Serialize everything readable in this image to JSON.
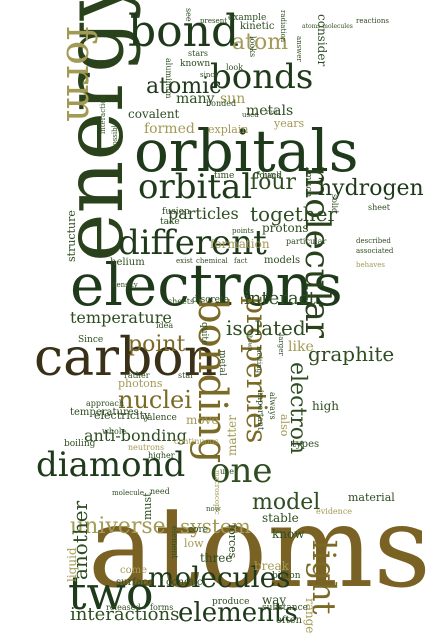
{
  "palette": {
    "dark_green": "#1f3a1a",
    "forest": "#2f4d22",
    "olive": "#7a6a26",
    "khaki": "#a39a55",
    "brown": "#4a3a1a",
    "light": "#9b9a6a"
  },
  "words": [
    {
      "text": "atoms",
      "color": "#7a6224"
    },
    {
      "text": "energy",
      "color": "#2a421c"
    },
    {
      "text": "orbitals",
      "color": "#1f3a1a"
    },
    {
      "text": "electrons",
      "color": "#1f3a1a"
    },
    {
      "text": "carbon",
      "color": "#3a3018"
    },
    {
      "text": "bond",
      "color": "#1f3a1a"
    },
    {
      "text": "bonds",
      "color": "#1f3a1a"
    },
    {
      "text": "form",
      "color": "#a39a55"
    },
    {
      "text": "atom",
      "color": "#a39a55"
    },
    {
      "text": "orbital",
      "color": "#1f3a1a"
    },
    {
      "text": "different",
      "color": "#1f3a1a"
    },
    {
      "text": "molecular",
      "color": "#2a421c"
    },
    {
      "text": "hydrogen",
      "color": "#1f3a1a"
    },
    {
      "text": "bonding",
      "color": "#7a6a26"
    },
    {
      "text": "properties",
      "color": "#7a6a26"
    },
    {
      "text": "one",
      "color": "#2f4d22"
    },
    {
      "text": "diamond",
      "color": "#1f3a1a"
    },
    {
      "text": "two",
      "color": "#1f3a1a"
    },
    {
      "text": "molecules",
      "color": "#1f3a1a"
    },
    {
      "text": "elements",
      "color": "#1f3a1a"
    },
    {
      "text": "light",
      "color": "#7a6a26"
    },
    {
      "text": "graphite",
      "color": "#2f4d22"
    },
    {
      "text": "nuclei",
      "color": "#7a6a26"
    },
    {
      "text": "point",
      "color": "#7a6a26"
    },
    {
      "text": "temperature",
      "color": "#2f4d22"
    },
    {
      "text": "atomic",
      "color": "#1f3a1a"
    },
    {
      "text": "four",
      "color": "#2f4d22"
    },
    {
      "text": "together",
      "color": "#2f4d22"
    },
    {
      "text": "particles",
      "color": "#2f4d22"
    },
    {
      "text": "universe",
      "color": "#a39a55"
    },
    {
      "text": "system",
      "color": "#a39a55"
    },
    {
      "text": "model",
      "color": "#2f4d22"
    },
    {
      "text": "electron",
      "color": "#2f4d22"
    },
    {
      "text": "isolated",
      "color": "#2f4d22"
    },
    {
      "text": "interact",
      "color": "#2f4d22"
    },
    {
      "text": "anti-bonding",
      "color": "#2f4d22"
    },
    {
      "text": "interactions",
      "color": "#2f4d22"
    },
    {
      "text": "another",
      "color": "#2f4d22"
    },
    {
      "text": "metals",
      "color": "#2f4d22"
    },
    {
      "text": "sun",
      "color": "#a39a55"
    },
    {
      "text": "formed",
      "color": "#a39a55"
    },
    {
      "text": "covalent",
      "color": "#2f4d22"
    },
    {
      "text": "many",
      "color": "#2f4d22"
    },
    {
      "text": "consider",
      "color": "#2f4d22"
    },
    {
      "text": "kinetic",
      "color": "#2f4d22"
    },
    {
      "text": "structure",
      "color": "#2f4d22"
    },
    {
      "text": "helium",
      "color": "#2f4d22"
    },
    {
      "text": "protons",
      "color": "#2f4d22"
    },
    {
      "text": "formation",
      "color": "#a39a55"
    },
    {
      "text": "photons",
      "color": "#a39a55"
    },
    {
      "text": "move",
      "color": "#a39a55"
    },
    {
      "text": "stable",
      "color": "#2f4d22"
    },
    {
      "text": "like",
      "color": "#a39a55"
    },
    {
      "text": "matter",
      "color": "#a39a55"
    },
    {
      "text": "high",
      "color": "#2f4d22"
    },
    {
      "text": "electricity",
      "color": "#2f4d22"
    },
    {
      "text": "temperatures",
      "color": "#2f4d22"
    },
    {
      "text": "break",
      "color": "#a39a55"
    },
    {
      "text": "way",
      "color": "#2f4d22"
    },
    {
      "text": "range",
      "color": "#a39a55"
    },
    {
      "text": "know",
      "color": "#2f4d22"
    },
    {
      "text": "three",
      "color": "#2f4d22"
    },
    {
      "text": "liquid",
      "color": "#a39a55"
    },
    {
      "text": "forces",
      "color": "#2f4d22"
    },
    {
      "text": "must",
      "color": "#2f4d22"
    },
    {
      "text": "Since",
      "color": "#2f4d22"
    },
    {
      "text": "fusion",
      "color": "#2f4d22"
    },
    {
      "text": "example",
      "color": "#2f4d22"
    },
    {
      "text": "time",
      "color": "#2f4d22"
    },
    {
      "text": "found",
      "color": "#2f4d22"
    },
    {
      "text": "explain",
      "color": "#a39a55"
    },
    {
      "text": "years",
      "color": "#a39a55"
    },
    {
      "text": "models",
      "color": "#2f4d22"
    },
    {
      "text": "take",
      "color": "#2f4d22"
    },
    {
      "text": "sheets",
      "color": "#2f4d22"
    },
    {
      "text": "discrete",
      "color": "#2f4d22"
    },
    {
      "text": "rather",
      "color": "#2f4d22"
    },
    {
      "text": "star",
      "color": "#2f4d22"
    },
    {
      "text": "approach",
      "color": "#2f4d22"
    },
    {
      "text": "valence",
      "color": "#2f4d22"
    },
    {
      "text": "whole",
      "color": "#2f4d22"
    },
    {
      "text": "boiling",
      "color": "#2f4d22"
    },
    {
      "text": "neutrons",
      "color": "#a39a55"
    },
    {
      "text": "continuous",
      "color": "#a39a55"
    },
    {
      "text": "higher",
      "color": "#2f4d22"
    },
    {
      "text": "molecule",
      "color": "#2f4d22"
    },
    {
      "text": "need",
      "color": "#2f4d22"
    },
    {
      "text": "now",
      "color": "#2f4d22"
    },
    {
      "text": "use",
      "color": "#2f4d22"
    },
    {
      "text": "core",
      "color": "#2f4d22"
    },
    {
      "text": "low",
      "color": "#a39a55"
    },
    {
      "text": "element",
      "color": "#2f4d22"
    },
    {
      "text": "come",
      "color": "#a39a55"
    },
    {
      "text": "surface",
      "color": "#2f4d22"
    },
    {
      "text": "conduct",
      "color": "#2f4d22"
    },
    {
      "text": "billion",
      "color": "#2f4d22"
    },
    {
      "text": "produce",
      "color": "#2f4d22"
    },
    {
      "text": "substance",
      "color": "#2f4d22"
    },
    {
      "text": "often",
      "color": "#2f4d22"
    },
    {
      "text": "released",
      "color": "#2f4d22"
    },
    {
      "text": "forms",
      "color": "#2f4d22"
    },
    {
      "text": "material",
      "color": "#2f4d22"
    },
    {
      "text": "evidence",
      "color": "#a39a55"
    },
    {
      "text": "types",
      "color": "#2f4d22"
    },
    {
      "text": "also",
      "color": "#a39a55"
    },
    {
      "text": "important",
      "color": "#2f4d22"
    },
    {
      "text": "always",
      "color": "#2f4d22"
    },
    {
      "text": "metal",
      "color": "#2f4d22"
    },
    {
      "text": "quite",
      "color": "#2f4d22"
    },
    {
      "text": "idea",
      "color": "#2f4d22"
    },
    {
      "text": "looks",
      "color": "#2f4d22"
    },
    {
      "text": "density",
      "color": "#2f4d22"
    },
    {
      "text": "exist",
      "color": "#2f4d22"
    },
    {
      "text": "chemical",
      "color": "#2f4d22"
    },
    {
      "text": "fact",
      "color": "#2f4d22"
    },
    {
      "text": "particular",
      "color": "#2f4d22"
    },
    {
      "text": "described",
      "color": "#2f4d22"
    },
    {
      "text": "associated",
      "color": "#2f4d22"
    },
    {
      "text": "behaves",
      "color": "#a39a55"
    },
    {
      "text": "solid",
      "color": "#2f4d22"
    },
    {
      "text": "sheet",
      "color": "#2f4d22"
    },
    {
      "text": "much",
      "color": "#2f4d22"
    },
    {
      "text": "back",
      "color": "#2f4d22"
    },
    {
      "text": "points",
      "color": "#2f4d22"
    },
    {
      "text": "known",
      "color": "#2f4d22"
    },
    {
      "text": "stars",
      "color": "#2f4d22"
    },
    {
      "text": "since",
      "color": "#2f4d22"
    },
    {
      "text": "look",
      "color": "#2f4d22"
    },
    {
      "text": "used",
      "color": "#2f4d22"
    },
    {
      "text": "bonded",
      "color": "#2f4d22"
    },
    {
      "text": "aluminum",
      "color": "#2f4d22"
    },
    {
      "text": "see",
      "color": "#2f4d22"
    },
    {
      "text": "present",
      "color": "#2f4d22"
    },
    {
      "text": "radiation",
      "color": "#2f4d22"
    },
    {
      "text": "answer",
      "color": "#2f4d22"
    },
    {
      "text": "reactions",
      "color": "#2f4d22"
    },
    {
      "text": "atoms molecules",
      "color": "#2f4d22"
    },
    {
      "text": "interaction",
      "color": "#2f4d22"
    },
    {
      "text": "possible",
      "color": "#2f4d22"
    },
    {
      "text": "rest",
      "color": "#2f4d22"
    },
    {
      "text": "macroscopic",
      "color": "#a39a55"
    },
    {
      "text": "melting",
      "color": "#2f4d22"
    },
    {
      "text": "larger",
      "color": "#2f4d22"
    },
    {
      "text": "shown",
      "color": "#2f4d22"
    },
    {
      "text": "electron",
      "color": "#2f4d22"
    }
  ]
}
